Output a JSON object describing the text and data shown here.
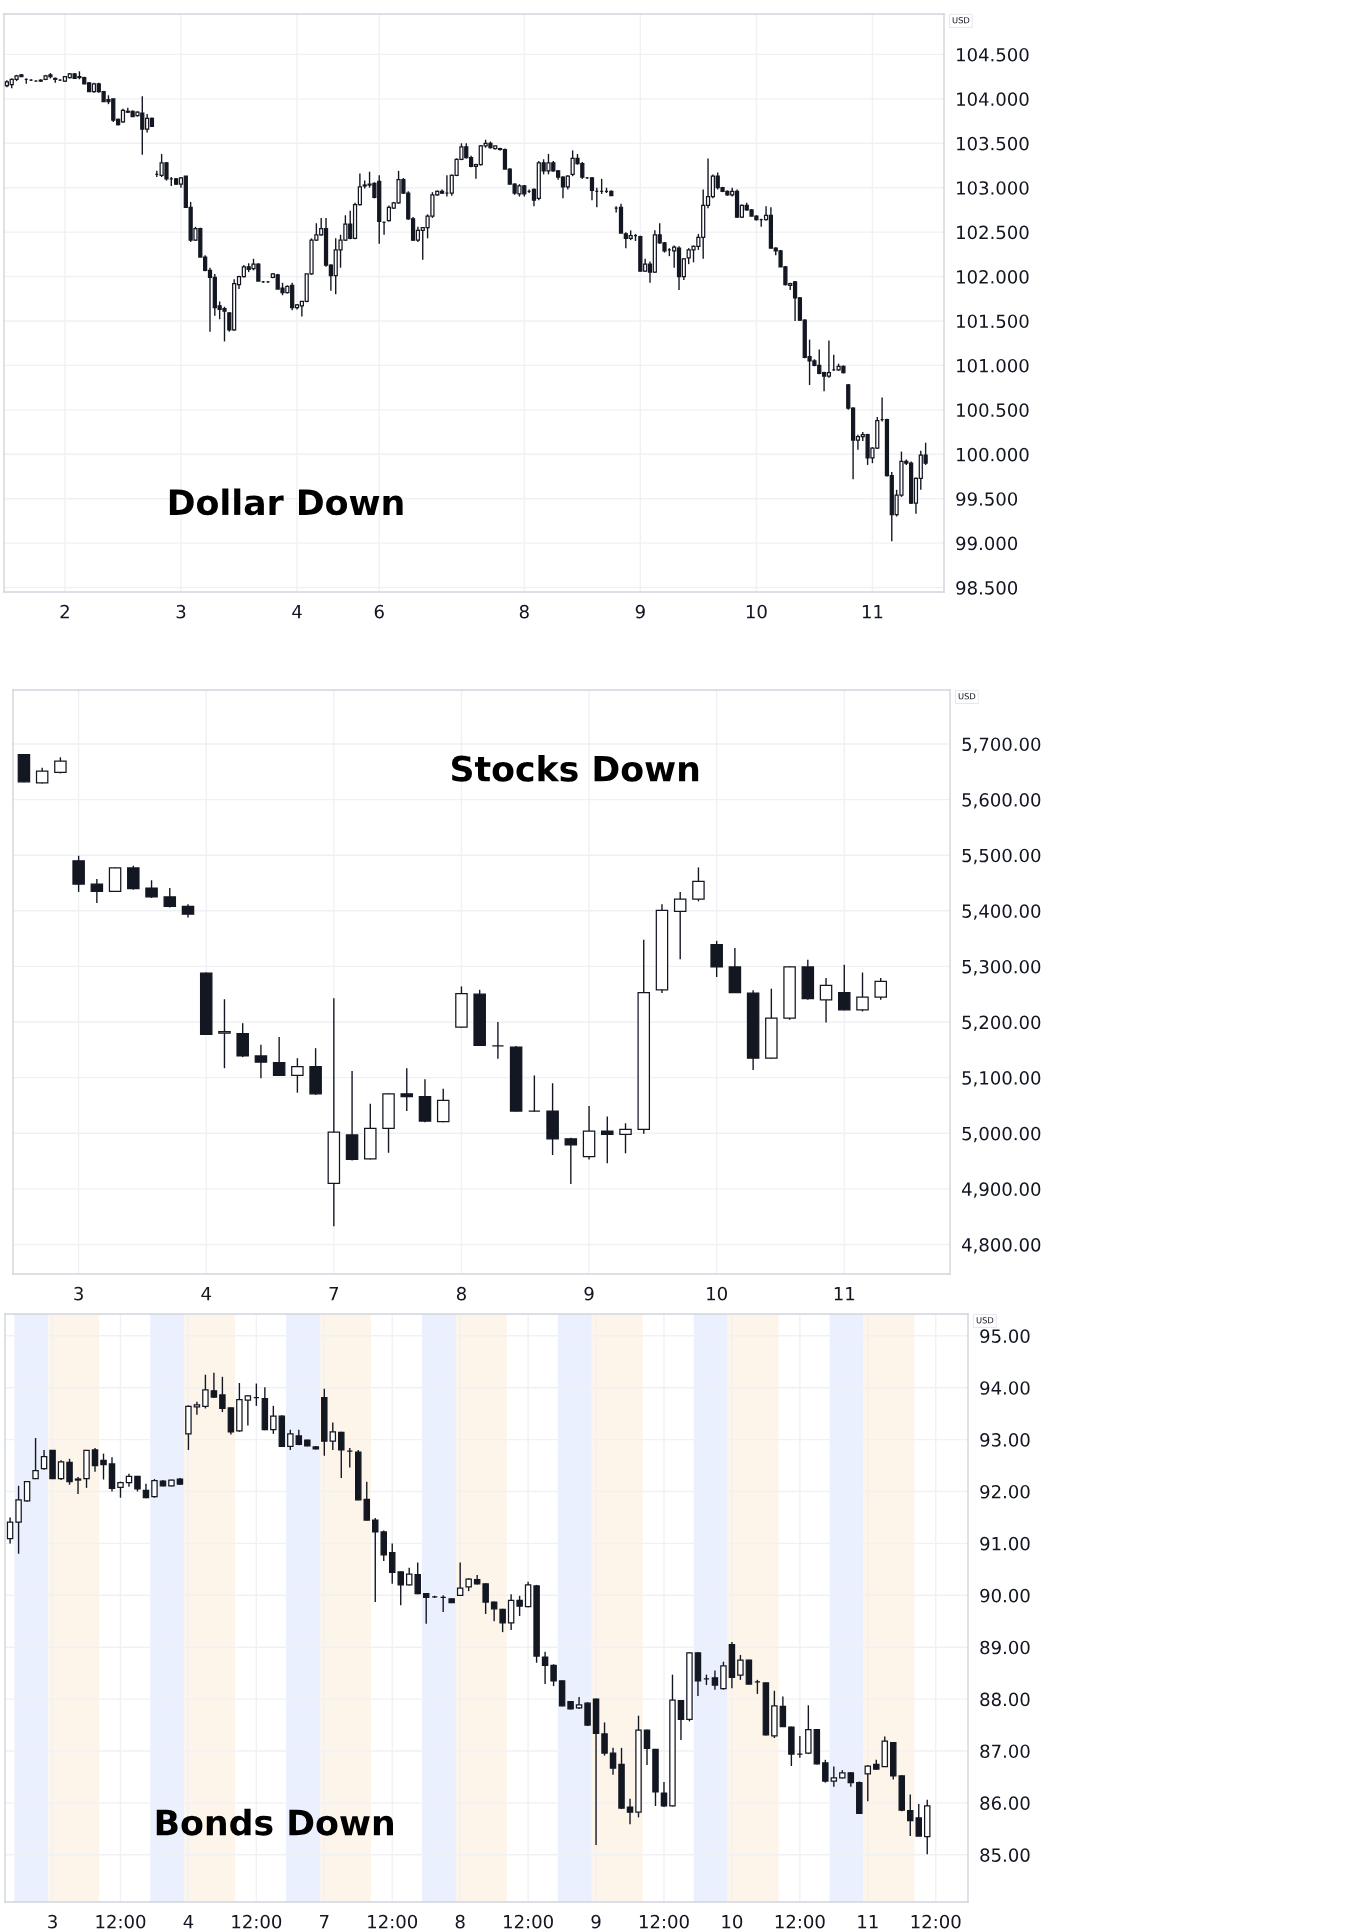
{
  "chart_data": [
    {
      "type": "candlestick",
      "title": "Dollar Down",
      "ylabel": "USD",
      "color": "#131722",
      "grid": true,
      "categories": [
        null,
        null,
        null,
        null,
        null,
        null,
        null,
        null,
        null,
        null,
        null,
        null,
        "2",
        null,
        null,
        null,
        null,
        null,
        null,
        null,
        null,
        null,
        null,
        null,
        null,
        null,
        null,
        null,
        null,
        null,
        null,
        null,
        null,
        null,
        null,
        null,
        "3",
        null,
        null,
        null,
        null,
        null,
        null,
        null,
        null,
        null,
        null,
        null,
        null,
        null,
        null,
        null,
        null,
        null,
        null,
        null,
        null,
        null,
        null,
        null,
        "4",
        null,
        null,
        null,
        null,
        null,
        null,
        null,
        null,
        null,
        null,
        null,
        null,
        null,
        null,
        null,
        null,
        "6",
        null,
        null,
        null,
        null,
        null,
        null,
        null,
        null,
        null,
        null,
        null,
        null,
        null,
        null,
        null,
        null,
        null,
        null,
        null,
        null,
        null,
        null,
        null,
        null,
        null,
        null,
        null,
        null,
        null,
        "8",
        null,
        null,
        null,
        null,
        null,
        null,
        null,
        null,
        null,
        null,
        null,
        null,
        null,
        null,
        null,
        null,
        null,
        null,
        null,
        null,
        null,
        null,
        null,
        "9",
        null,
        null,
        null,
        null,
        null,
        null,
        null,
        null,
        null,
        null,
        null,
        null,
        null,
        null,
        null,
        null,
        null,
        null,
        null,
        null,
        null,
        null,
        null,
        "10",
        null,
        null,
        null,
        null,
        null,
        null,
        null,
        null,
        null,
        null,
        null,
        null,
        null,
        null,
        null,
        null,
        null,
        null,
        null,
        null,
        null,
        null,
        null,
        "11",
        null,
        null,
        null,
        null,
        null,
        null,
        null,
        null,
        null,
        null,
        null
      ],
      "ylim": [
        98.45,
        104.955
      ],
      "yticks": [
        {
          "value": 98.5,
          "label": "98.500"
        },
        {
          "value": 99,
          "label": "99.000"
        },
        {
          "value": 99.5,
          "label": "99.500"
        },
        {
          "value": 100,
          "label": "100.000"
        },
        {
          "value": 100.5,
          "label": "100.500"
        },
        {
          "value": 101,
          "label": "101.000"
        },
        {
          "value": 101.5,
          "label": "101.500"
        },
        {
          "value": 102,
          "label": "102.000"
        },
        {
          "value": 102.5,
          "label": "102.500"
        },
        {
          "value": 103,
          "label": "103.000"
        },
        {
          "value": 103.5,
          "label": "103.500"
        },
        {
          "value": 104,
          "label": "104.000"
        },
        {
          "value": 104.5,
          "label": "104.500"
        }
      ],
      "ohlc": [
        [
          104.15,
          104.21,
          104.13,
          104.19
        ],
        [
          104.16,
          104.23,
          104.12,
          104.22
        ],
        [
          104.22,
          104.27,
          104.2,
          104.26
        ],
        [
          104.27,
          104.28,
          104.25,
          104.25
        ],
        [
          104.22,
          104.23,
          104.17,
          104.22
        ],
        [
          104.21,
          104.22,
          104.2,
          104.21
        ],
        [
          104.2,
          104.21,
          104.2,
          104.2
        ],
        [
          104.2,
          104.22,
          104.19,
          104.21
        ],
        [
          104.22,
          104.27,
          104.21,
          104.26
        ],
        [
          104.27,
          104.29,
          104.23,
          104.25
        ],
        [
          104.23,
          104.24,
          104.18,
          104.22
        ],
        [
          104.21,
          104.22,
          104.2,
          104.21
        ],
        [
          104.2,
          104.25,
          104.19,
          104.25
        ],
        [
          104.24,
          104.29,
          104.23,
          104.28
        ],
        [
          104.28,
          104.29,
          104.23,
          104.23
        ],
        [
          104.24,
          104.31,
          104.22,
          104.25
        ],
        [
          104.24,
          104.25,
          104.17,
          104.17
        ],
        [
          104.18,
          104.19,
          104.08,
          104.08
        ],
        [
          104.08,
          104.18,
          104.07,
          104.17
        ],
        [
          104.17,
          104.18,
          104.07,
          104.08
        ],
        [
          104.08,
          104.09,
          103.97,
          103.97
        ],
        [
          103.99,
          104.04,
          103.94,
          103.97
        ],
        [
          104.0,
          104.0,
          103.74,
          103.76
        ],
        [
          103.77,
          103.78,
          103.7,
          103.71
        ],
        [
          103.74,
          103.89,
          103.73,
          103.87
        ],
        [
          103.86,
          103.9,
          103.84,
          103.85
        ],
        [
          103.86,
          103.87,
          103.8,
          103.8
        ],
        [
          103.81,
          103.86,
          103.8,
          103.85
        ],
        [
          103.84,
          104.03,
          103.37,
          103.66
        ],
        [
          103.66,
          103.83,
          103.62,
          103.78
        ],
        [
          103.78,
          103.79,
          103.69,
          103.69
        ],
        [
          103.15,
          103.19,
          103.12,
          103.15
        ],
        [
          103.14,
          103.38,
          103.12,
          103.28
        ],
        [
          103.28,
          103.29,
          103.08,
          103.1
        ],
        [
          103.1,
          103.12,
          103.02,
          103.1
        ],
        [
          103.1,
          103.11,
          103.03,
          103.04
        ],
        [
          103.04,
          103.12,
          103.0,
          103.11
        ],
        [
          103.13,
          103.13,
          102.78,
          102.78
        ],
        [
          102.78,
          102.84,
          102.39,
          102.41
        ],
        [
          102.41,
          102.56,
          102.4,
          102.54
        ],
        [
          102.54,
          102.55,
          102.22,
          102.22
        ],
        [
          102.22,
          102.24,
          102.06,
          102.07
        ],
        [
          102.07,
          102.1,
          101.38,
          101.99
        ],
        [
          101.99,
          102.03,
          101.56,
          101.65
        ],
        [
          101.67,
          101.72,
          101.52,
          101.63
        ],
        [
          101.64,
          101.66,
          101.27,
          101.61
        ],
        [
          101.59,
          101.6,
          101.38,
          101.4
        ],
        [
          101.4,
          101.97,
          101.39,
          101.92
        ],
        [
          101.91,
          102.01,
          101.86,
          102.0
        ],
        [
          102.0,
          102.13,
          101.99,
          102.11
        ],
        [
          102.11,
          102.15,
          102.05,
          102.08
        ],
        [
          102.09,
          102.2,
          102.07,
          102.14
        ],
        [
          102.14,
          102.15,
          101.95,
          101.95
        ],
        [
          101.94,
          101.95,
          101.93,
          101.94
        ],
        [
          101.94,
          101.95,
          101.93,
          101.94
        ],
        [
          101.99,
          102.04,
          101.98,
          102.03
        ],
        [
          102.02,
          102.03,
          101.86,
          101.86
        ],
        [
          101.87,
          101.93,
          101.79,
          101.82
        ],
        [
          101.82,
          101.9,
          101.81,
          101.89
        ],
        [
          101.9,
          101.93,
          101.62,
          101.65
        ],
        [
          101.65,
          101.69,
          101.63,
          101.68
        ],
        [
          101.67,
          101.72,
          101.55,
          101.72
        ],
        [
          101.72,
          102.03,
          101.71,
          102.03
        ],
        [
          102.03,
          102.43,
          102.02,
          102.41
        ],
        [
          102.41,
          102.6,
          102.4,
          102.47
        ],
        [
          102.47,
          102.66,
          102.46,
          102.54
        ],
        [
          102.54,
          102.66,
          102.11,
          102.13
        ],
        [
          102.13,
          102.14,
          101.84,
          102.01
        ],
        [
          102.01,
          102.43,
          101.8,
          102.3
        ],
        [
          102.3,
          102.47,
          102.1,
          102.41
        ],
        [
          102.41,
          102.69,
          102.4,
          102.59
        ],
        [
          102.59,
          102.74,
          102.42,
          102.43
        ],
        [
          102.43,
          102.83,
          102.42,
          102.81
        ],
        [
          102.81,
          103.16,
          102.8,
          103.01
        ],
        [
          103.02,
          103.08,
          102.99,
          103.03
        ],
        [
          103.03,
          103.18,
          103.0,
          103.04
        ],
        [
          103.05,
          103.06,
          102.88,
          102.89
        ],
        [
          103.07,
          103.14,
          102.37,
          102.62
        ],
        [
          102.61,
          102.62,
          102.47,
          102.61
        ],
        [
          102.63,
          102.8,
          102.62,
          102.78
        ],
        [
          102.77,
          102.84,
          102.76,
          102.83
        ],
        [
          102.83,
          103.19,
          102.82,
          103.09
        ],
        [
          103.09,
          103.11,
          102.93,
          102.94
        ],
        [
          102.94,
          102.96,
          102.64,
          102.65
        ],
        [
          102.65,
          102.67,
          102.4,
          102.41
        ],
        [
          102.41,
          102.56,
          102.39,
          102.52
        ],
        [
          102.52,
          102.55,
          102.19,
          102.55
        ],
        [
          102.55,
          102.7,
          102.43,
          102.68
        ],
        [
          102.68,
          102.95,
          102.66,
          102.92
        ],
        [
          102.92,
          102.97,
          102.91,
          102.96
        ],
        [
          102.96,
          102.98,
          102.93,
          102.94
        ],
        [
          102.94,
          103.14,
          102.9,
          102.94
        ],
        [
          102.94,
          103.15,
          102.91,
          103.14
        ],
        [
          103.14,
          103.33,
          103.13,
          103.32
        ],
        [
          103.32,
          103.5,
          103.31,
          103.46
        ],
        [
          103.46,
          103.5,
          103.33,
          103.34
        ],
        [
          103.34,
          103.36,
          103.23,
          103.24
        ],
        [
          103.24,
          103.27,
          103.1,
          103.26
        ],
        [
          103.26,
          103.48,
          103.25,
          103.47
        ],
        [
          103.47,
          103.54,
          103.45,
          103.5
        ],
        [
          103.5,
          103.52,
          103.44,
          103.45
        ],
        [
          103.44,
          103.47,
          103.43,
          103.47
        ],
        [
          103.44,
          103.45,
          103.42,
          103.43
        ],
        [
          103.43,
          103.44,
          103.21,
          103.21
        ],
        [
          103.21,
          103.22,
          103.04,
          103.04
        ],
        [
          103.04,
          103.05,
          102.92,
          102.94
        ],
        [
          102.93,
          103.04,
          102.9,
          103.02
        ],
        [
          103.02,
          103.03,
          102.9,
          102.93
        ],
        [
          102.96,
          102.98,
          102.94,
          102.96
        ],
        [
          102.98,
          102.99,
          102.79,
          102.86
        ],
        [
          102.88,
          103.3,
          102.86,
          103.28
        ],
        [
          103.28,
          103.32,
          103.15,
          103.19
        ],
        [
          103.19,
          103.38,
          103.15,
          103.28
        ],
        [
          103.28,
          103.3,
          103.18,
          103.19
        ],
        [
          103.19,
          103.2,
          103.09,
          103.12
        ],
        [
          103.12,
          103.13,
          102.88,
          103.01
        ],
        [
          103.01,
          103.14,
          102.98,
          103.13
        ],
        [
          103.15,
          103.42,
          103.13,
          103.33
        ],
        [
          103.33,
          103.38,
          103.26,
          103.27
        ],
        [
          103.27,
          103.29,
          103.1,
          103.12
        ],
        [
          103.11,
          103.12,
          103.1,
          103.11
        ],
        [
          103.11,
          103.12,
          102.86,
          102.97
        ],
        [
          102.96,
          103.0,
          102.78,
          102.96
        ],
        [
          102.96,
          103.1,
          102.93,
          102.96
        ],
        [
          102.96,
          103.0,
          102.94,
          102.96
        ],
        [
          102.96,
          102.97,
          102.91,
          102.91
        ],
        [
          102.77,
          102.79,
          102.72,
          102.77
        ],
        [
          102.78,
          102.82,
          102.49,
          102.49
        ],
        [
          102.48,
          102.5,
          102.32,
          102.43
        ],
        [
          102.43,
          102.52,
          102.41,
          102.46
        ],
        [
          102.46,
          102.48,
          102.4,
          102.46
        ],
        [
          102.45,
          102.46,
          102.06,
          102.06
        ],
        [
          102.06,
          102.2,
          102.05,
          102.14
        ],
        [
          102.14,
          102.17,
          101.93,
          102.05
        ],
        [
          102.05,
          102.52,
          102.04,
          102.47
        ],
        [
          102.47,
          102.6,
          102.37,
          102.38
        ],
        [
          102.38,
          102.39,
          102.27,
          102.29
        ],
        [
          102.3,
          102.32,
          102.23,
          102.3
        ],
        [
          102.29,
          102.35,
          102.1,
          102.33
        ],
        [
          102.32,
          102.34,
          101.85,
          102.0
        ],
        [
          102.0,
          102.21,
          101.96,
          102.2
        ],
        [
          102.21,
          102.32,
          102.14,
          102.3
        ],
        [
          102.3,
          102.35,
          102.16,
          102.34
        ],
        [
          102.34,
          102.48,
          102.3,
          102.44
        ],
        [
          102.44,
          102.98,
          102.2,
          102.8
        ],
        [
          102.8,
          103.33,
          102.77,
          102.9
        ],
        [
          102.9,
          103.15,
          102.88,
          103.13
        ],
        [
          103.13,
          103.17,
          102.98,
          103.0
        ],
        [
          103.0,
          103.01,
          102.95,
          102.96
        ],
        [
          102.96,
          102.97,
          102.91,
          102.92
        ],
        [
          102.92,
          103.0,
          102.9,
          102.96
        ],
        [
          102.96,
          102.98,
          102.66,
          102.67
        ],
        [
          102.67,
          102.81,
          102.66,
          102.8
        ],
        [
          102.8,
          102.83,
          102.74,
          102.75
        ],
        [
          102.75,
          102.76,
          102.68,
          102.68
        ],
        [
          102.68,
          102.69,
          102.63,
          102.64
        ],
        [
          102.64,
          102.65,
          102.56,
          102.64
        ],
        [
          102.64,
          102.79,
          102.63,
          102.69
        ],
        [
          102.69,
          102.78,
          102.32,
          102.32
        ],
        [
          102.32,
          102.33,
          102.24,
          102.29
        ],
        [
          102.29,
          102.3,
          102.11,
          102.11
        ],
        [
          102.11,
          102.12,
          101.9,
          101.91
        ],
        [
          101.9,
          101.93,
          101.85,
          101.92
        ],
        [
          101.94,
          101.95,
          101.5,
          101.76
        ],
        [
          101.76,
          101.77,
          101.5,
          101.51
        ],
        [
          101.51,
          101.52,
          101.08,
          101.09
        ],
        [
          101.1,
          101.29,
          100.78,
          101.05
        ],
        [
          101.05,
          101.07,
          100.99,
          101.0
        ],
        [
          101.0,
          101.18,
          100.9,
          100.91
        ],
        [
          100.92,
          100.93,
          100.71,
          100.88
        ],
        [
          100.88,
          101.28,
          100.86,
          100.92
        ],
        [
          100.95,
          101.12,
          100.94,
          100.95
        ],
        [
          100.95,
          101.02,
          100.94,
          100.99
        ],
        [
          100.99,
          101.0,
          100.91,
          100.92
        ],
        [
          100.78,
          100.79,
          100.5,
          100.52
        ],
        [
          100.52,
          100.53,
          99.72,
          100.16
        ],
        [
          100.16,
          100.22,
          100.05,
          100.2
        ],
        [
          100.2,
          100.25,
          100.15,
          100.22
        ],
        [
          100.22,
          100.23,
          99.88,
          99.96
        ],
        [
          99.96,
          100.08,
          99.9,
          100.07
        ],
        [
          100.07,
          100.42,
          100.06,
          100.38
        ],
        [
          100.39,
          100.64,
          100.37,
          100.39
        ],
        [
          100.39,
          100.4,
          99.75,
          99.76
        ],
        [
          99.76,
          99.8,
          99.02,
          99.32
        ],
        [
          99.32,
          99.6,
          99.3,
          99.54
        ],
        [
          99.54,
          100.03,
          99.52,
          99.92
        ],
        [
          99.92,
          99.94,
          99.88,
          99.9
        ],
        [
          99.9,
          99.92,
          99.44,
          99.45
        ],
        [
          99.45,
          99.74,
          99.33,
          99.73
        ],
        [
          99.73,
          100.04,
          99.6,
          99.99
        ],
        [
          99.99,
          100.13,
          99.88,
          99.9
        ]
      ]
    },
    {
      "type": "candlestick",
      "title": "Stocks Down",
      "ylabel": "USD",
      "color": "#131722",
      "grid": true,
      "categories": [
        null,
        null,
        null,
        "3",
        null,
        null,
        null,
        null,
        null,
        null,
        "4",
        null,
        null,
        null,
        null,
        null,
        null,
        "7",
        null,
        null,
        null,
        null,
        null,
        null,
        "8",
        null,
        null,
        null,
        null,
        null,
        null,
        "9",
        null,
        null,
        null,
        null,
        null,
        null,
        "10",
        null,
        null,
        null,
        null,
        null,
        null,
        "11",
        null,
        null
      ],
      "ylim": [
        4747,
        5797
      ],
      "yticks": [
        {
          "value": 4800,
          "label": "4,800.00"
        },
        {
          "value": 4900,
          "label": "4,900.00"
        },
        {
          "value": 5000,
          "label": "5,000.00"
        },
        {
          "value": 5100,
          "label": "5,100.00"
        },
        {
          "value": 5200,
          "label": "5,200.00"
        },
        {
          "value": 5300,
          "label": "5,300.00"
        },
        {
          "value": 5400,
          "label": "5,400.00"
        },
        {
          "value": 5500,
          "label": "5,500.00"
        },
        {
          "value": 5600,
          "label": "5,600.00"
        },
        {
          "value": 5700,
          "label": "5,700.00"
        }
      ],
      "ohlc": [
        [
          5681,
          5682,
          5631,
          5632
        ],
        [
          5630,
          5657,
          5629,
          5651
        ],
        [
          5649,
          5676,
          5647,
          5669
        ],
        [
          5490,
          5499,
          5434,
          5448
        ],
        [
          5448,
          5457,
          5414,
          5435
        ],
        [
          5435,
          5478,
          5434,
          5477
        ],
        [
          5477,
          5481,
          5438,
          5440
        ],
        [
          5441,
          5455,
          5423,
          5425
        ],
        [
          5425,
          5441,
          5406,
          5408
        ],
        [
          5408,
          5412,
          5388,
          5394
        ],
        [
          5288,
          5289,
          5177,
          5178
        ],
        [
          5180,
          5241,
          5117,
          5183
        ],
        [
          5179,
          5198,
          5137,
          5139
        ],
        [
          5139,
          5159,
          5099,
          5128
        ],
        [
          5127,
          5173,
          5103,
          5104
        ],
        [
          5104,
          5135,
          5073,
          5120
        ],
        [
          5120,
          5153,
          5069,
          5071
        ],
        [
          4910,
          5243,
          4833,
          5002
        ],
        [
          4997,
          5112,
          4951,
          4953
        ],
        [
          4954,
          5053,
          4953,
          5009
        ],
        [
          5009,
          5072,
          4965,
          5071
        ],
        [
          5071,
          5117,
          5040,
          5066
        ],
        [
          5066,
          5097,
          5020,
          5022
        ],
        [
          5021,
          5080,
          5020,
          5059
        ],
        [
          5191,
          5264,
          5190,
          5251
        ],
        [
          5250,
          5258,
          5157,
          5158
        ],
        [
          5157,
          5200,
          5134,
          5157
        ],
        [
          5155,
          5157,
          5039,
          5040
        ],
        [
          5040,
          5104,
          5039,
          5040
        ],
        [
          5040,
          5090,
          4961,
          4990
        ],
        [
          4990,
          4992,
          4909,
          4979
        ],
        [
          4958,
          5049,
          4953,
          5004
        ],
        [
          5004,
          5030,
          4946,
          4998
        ],
        [
          4998,
          5018,
          4964,
          5007
        ],
        [
          5007,
          5348,
          4999,
          5253
        ],
        [
          5258,
          5412,
          5252,
          5401
        ],
        [
          5399,
          5434,
          5313,
          5421
        ],
        [
          5421,
          5478,
          5417,
          5453
        ],
        [
          5339,
          5346,
          5281,
          5299
        ],
        [
          5299,
          5333,
          5252,
          5253
        ],
        [
          5252,
          5257,
          5114,
          5135
        ],
        [
          5135,
          5260,
          5134,
          5207
        ],
        [
          5207,
          5300,
          5204,
          5299
        ],
        [
          5299,
          5312,
          5240,
          5242
        ],
        [
          5240,
          5279,
          5199,
          5266
        ],
        [
          5253,
          5303,
          5221,
          5222
        ],
        [
          5222,
          5289,
          5219,
          5245
        ],
        [
          5245,
          5279,
          5240,
          5273
        ]
      ]
    },
    {
      "type": "candlestick",
      "title": "Bonds Down",
      "ylabel": "USD",
      "color": "#131722",
      "grid": true,
      "categories": [
        null,
        null,
        null,
        null,
        null,
        "3",
        null,
        null,
        null,
        null,
        null,
        null,
        null,
        "12:00",
        null,
        null,
        null,
        null,
        null,
        null,
        null,
        "4",
        null,
        null,
        null,
        null,
        null,
        null,
        null,
        "12:00",
        null,
        null,
        null,
        null,
        null,
        null,
        null,
        "7",
        null,
        null,
        null,
        null,
        null,
        null,
        null,
        "12:00",
        null,
        null,
        null,
        null,
        null,
        null,
        null,
        "8",
        null,
        null,
        null,
        null,
        null,
        null,
        null,
        "12:00",
        null,
        null,
        null,
        null,
        null,
        null,
        null,
        "9",
        null,
        null,
        null,
        null,
        null,
        null,
        null,
        "12:00",
        null,
        null,
        null,
        null,
        null,
        null,
        null,
        "10",
        null,
        null,
        null,
        null,
        null,
        null,
        null,
        "12:00",
        null,
        null,
        null,
        null,
        null,
        null,
        null,
        "11",
        null,
        null,
        null,
        null,
        null,
        null,
        null,
        "12:00"
      ],
      "ylim": [
        84.09,
        95.42
      ],
      "yticks": [
        {
          "value": 85,
          "label": "85.00"
        },
        {
          "value": 86,
          "label": "86.00"
        },
        {
          "value": 87,
          "label": "87.00"
        },
        {
          "value": 88,
          "label": "88.00"
        },
        {
          "value": 89,
          "label": "89.00"
        },
        {
          "value": 90,
          "label": "90.00"
        },
        {
          "value": 91,
          "label": "91.00"
        },
        {
          "value": 92,
          "label": "92.00"
        },
        {
          "value": 93,
          "label": "93.00"
        },
        {
          "value": 94,
          "label": "94.00"
        },
        {
          "value": 95,
          "label": "95.00"
        }
      ],
      "ohlc": [
        [
          91.09,
          91.5,
          91.0,
          91.41
        ],
        [
          91.41,
          92.11,
          90.8,
          91.84
        ],
        [
          91.82,
          92.2,
          91.8,
          92.19
        ],
        [
          92.25,
          93.03,
          92.24,
          92.4
        ],
        [
          92.44,
          92.8,
          92.42,
          92.67
        ],
        [
          92.79,
          92.8,
          92.24,
          92.25
        ],
        [
          92.25,
          92.6,
          92.22,
          92.57
        ],
        [
          92.56,
          92.63,
          92.13,
          92.19
        ],
        [
          92.22,
          92.28,
          91.95,
          92.24
        ],
        [
          92.25,
          92.8,
          92.07,
          92.79
        ],
        [
          92.8,
          92.84,
          92.38,
          92.5
        ],
        [
          92.6,
          92.73,
          92.23,
          92.52
        ],
        [
          92.53,
          92.66,
          92.0,
          92.06
        ],
        [
          92.08,
          92.19,
          91.88,
          92.17
        ],
        [
          92.17,
          92.34,
          92.09,
          92.29
        ],
        [
          92.29,
          92.3,
          92.0,
          92.05
        ],
        [
          92.02,
          92.15,
          91.87,
          91.88
        ],
        [
          91.9,
          92.24,
          91.88,
          92.21
        ],
        [
          92.2,
          92.22,
          92.1,
          92.11
        ],
        [
          92.11,
          92.23,
          92.1,
          92.22
        ],
        [
          92.24,
          92.26,
          92.13,
          92.14
        ],
        [
          93.11,
          93.66,
          92.8,
          93.64
        ],
        [
          93.63,
          93.73,
          93.48,
          93.67
        ],
        [
          93.64,
          94.25,
          93.6,
          93.96
        ],
        [
          93.94,
          94.29,
          93.8,
          93.82
        ],
        [
          93.86,
          94.21,
          93.53,
          93.6
        ],
        [
          93.61,
          93.62,
          93.1,
          93.15
        ],
        [
          93.17,
          94.09,
          93.15,
          93.77
        ],
        [
          93.76,
          93.85,
          93.27,
          93.84
        ],
        [
          93.81,
          94.08,
          93.65,
          93.81
        ],
        [
          93.79,
          94.01,
          93.18,
          93.19
        ],
        [
          93.19,
          93.65,
          93.11,
          93.45
        ],
        [
          93.45,
          93.47,
          92.86,
          92.87
        ],
        [
          92.87,
          93.19,
          92.8,
          93.11
        ],
        [
          93.07,
          93.19,
          92.89,
          92.91
        ],
        [
          92.99,
          93.0,
          92.87,
          92.88
        ],
        [
          92.86,
          92.87,
          92.81,
          92.82
        ],
        [
          93.81,
          93.98,
          92.69,
          92.97
        ],
        [
          92.97,
          93.33,
          92.8,
          93.15
        ],
        [
          93.14,
          93.15,
          92.26,
          92.8
        ],
        [
          92.78,
          92.84,
          92.46,
          92.78
        ],
        [
          92.76,
          92.8,
          91.83,
          91.84
        ],
        [
          91.85,
          92.19,
          91.44,
          91.45
        ],
        [
          91.45,
          91.49,
          89.87,
          91.22
        ],
        [
          91.22,
          91.25,
          90.66,
          90.78
        ],
        [
          90.82,
          91.0,
          90.22,
          90.44
        ],
        [
          90.45,
          90.46,
          89.81,
          90.2
        ],
        [
          90.2,
          90.53,
          90.19,
          90.41
        ],
        [
          90.4,
          90.63,
          90.02,
          90.03
        ],
        [
          90.03,
          90.04,
          89.45,
          89.96
        ],
        [
          89.97,
          89.99,
          89.95,
          89.97
        ],
        [
          89.96,
          90.0,
          89.68,
          89.96
        ],
        [
          89.93,
          89.94,
          89.85,
          89.86
        ],
        [
          90.0,
          90.63,
          89.99,
          90.14
        ],
        [
          90.16,
          90.33,
          90.08,
          90.31
        ],
        [
          90.3,
          90.39,
          90.21,
          90.22
        ],
        [
          90.22,
          90.23,
          89.64,
          89.87
        ],
        [
          89.87,
          89.88,
          89.5,
          89.74
        ],
        [
          89.73,
          89.74,
          89.29,
          89.47
        ],
        [
          89.47,
          90.02,
          89.33,
          89.9
        ],
        [
          89.9,
          89.99,
          89.6,
          89.79
        ],
        [
          89.78,
          90.26,
          89.77,
          90.2
        ],
        [
          90.18,
          90.2,
          88.7,
          88.83
        ],
        [
          88.81,
          88.91,
          88.29,
          88.65
        ],
        [
          88.65,
          88.67,
          88.25,
          88.35
        ],
        [
          88.35,
          88.36,
          87.86,
          87.87
        ],
        [
          87.95,
          87.96,
          87.8,
          87.81
        ],
        [
          87.83,
          88.04,
          87.81,
          87.89
        ],
        [
          87.92,
          87.94,
          87.48,
          87.5
        ],
        [
          88.0,
          88.01,
          85.19,
          87.34
        ],
        [
          87.33,
          87.55,
          86.91,
          86.96
        ],
        [
          86.96,
          87.06,
          86.54,
          86.67
        ],
        [
          86.74,
          87.06,
          85.88,
          85.9
        ],
        [
          85.92,
          86.08,
          85.59,
          85.82
        ],
        [
          85.82,
          87.68,
          85.72,
          87.4
        ],
        [
          87.4,
          87.41,
          86.73,
          87.05
        ],
        [
          87.03,
          87.04,
          85.94,
          86.21
        ],
        [
          86.19,
          86.4,
          85.92,
          85.94
        ],
        [
          85.94,
          88.47,
          85.93,
          87.98
        ],
        [
          87.97,
          87.98,
          87.21,
          87.61
        ],
        [
          87.61,
          88.9,
          87.57,
          88.89
        ],
        [
          88.89,
          88.9,
          88.06,
          88.35
        ],
        [
          88.39,
          88.47,
          88.27,
          88.39
        ],
        [
          88.41,
          88.55,
          88.18,
          88.27
        ],
        [
          88.2,
          88.72,
          88.18,
          88.64
        ],
        [
          89.05,
          89.1,
          88.21,
          88.42
        ],
        [
          88.46,
          88.85,
          88.37,
          88.75
        ],
        [
          88.75,
          88.76,
          88.28,
          88.29
        ],
        [
          88.33,
          88.37,
          88.1,
          88.33
        ],
        [
          88.31,
          88.32,
          87.3,
          87.31
        ],
        [
          87.29,
          88.16,
          87.25,
          87.87
        ],
        [
          87.86,
          88.05,
          87.46,
          87.47
        ],
        [
          87.46,
          87.47,
          86.71,
          86.94
        ],
        [
          86.94,
          87.29,
          86.87,
          86.94
        ],
        [
          86.96,
          87.88,
          86.94,
          87.41
        ],
        [
          87.41,
          87.42,
          86.74,
          86.75
        ],
        [
          86.77,
          86.83,
          86.39,
          86.42
        ],
        [
          86.42,
          86.7,
          86.31,
          86.48
        ],
        [
          86.48,
          86.63,
          86.47,
          86.58
        ],
        [
          86.58,
          86.59,
          86.31,
          86.39
        ],
        [
          86.39,
          86.41,
          85.8,
          85.8
        ],
        [
          86.56,
          86.73,
          86.03,
          86.71
        ],
        [
          86.74,
          86.83,
          86.64,
          86.65
        ],
        [
          86.7,
          87.28,
          86.69,
          87.19
        ],
        [
          87.16,
          87.17,
          86.45,
          86.52
        ],
        [
          86.52,
          86.53,
          85.84,
          85.86
        ],
        [
          85.85,
          86.16,
          85.36,
          85.66
        ],
        [
          85.71,
          85.98,
          85.36,
          85.36
        ],
        [
          85.35,
          86.06,
          85.01,
          85.94
        ],
        null
      ]
    }
  ]
}
